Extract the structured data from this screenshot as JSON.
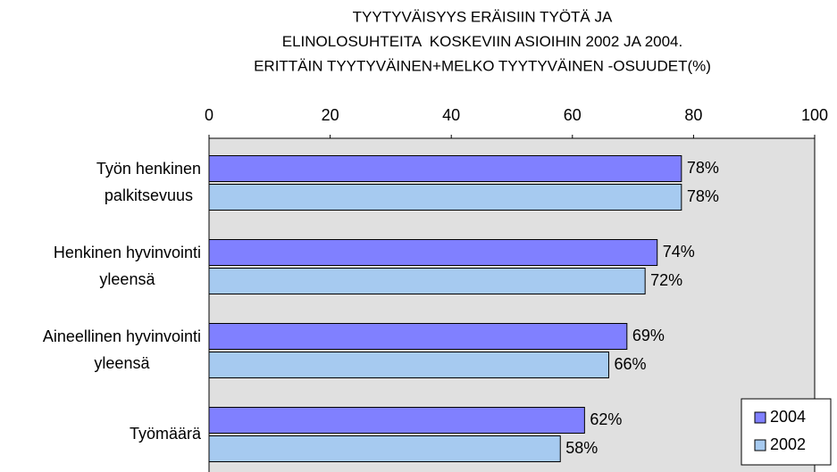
{
  "chart_data": {
    "type": "hbar",
    "title": [
      "TYYTYVÄISYYS ERÄISIIN TYÖTÄ JA",
      "ELINOLOSUHTEITA  KOSKEVIIN ASIOIHIN 2002 JA 2004.",
      "ERITTÄIN TYYTYVÄINEN+MELKO TYYTYVÄINEN -OSUUDET(%)"
    ],
    "categories": [
      [
        "Työn henkinen",
        "palkitsevuus"
      ],
      [
        "Henkinen hyvinvointi",
        "yleensä"
      ],
      [
        "Aineellinen hyvinvointi",
        "yleensä"
      ],
      [
        "Työmäärä"
      ]
    ],
    "series": [
      {
        "name": "2004",
        "color": "#8080ff",
        "values": [
          78,
          74,
          69,
          62
        ],
        "value_labels": [
          "78%",
          "74%",
          "69%",
          "62%"
        ]
      },
      {
        "name": "2002",
        "color": "#a6caf0",
        "values": [
          78,
          72,
          66,
          58
        ],
        "value_labels": [
          "78%",
          "72%",
          "66%",
          "58%"
        ]
      }
    ],
    "xlim": [
      0,
      100
    ],
    "xticks": [
      0,
      20,
      40,
      60,
      80,
      100
    ],
    "legend": "bottom-right"
  }
}
